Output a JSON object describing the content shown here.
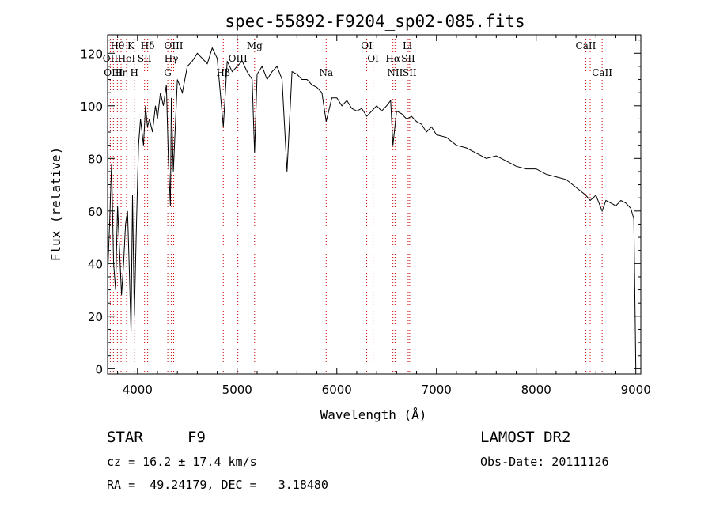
{
  "chart_data": {
    "type": "line",
    "title": "spec-55892-F9204_sp02-085.fits",
    "xlabel": "Wavelength (Å)",
    "ylabel": "Flux (relative)",
    "xlim": [
      3700,
      9050
    ],
    "ylim": [
      -2,
      127
    ],
    "xticks": [
      4000,
      5000,
      6000,
      7000,
      8000,
      9000
    ],
    "yticks": [
      0,
      20,
      40,
      60,
      80,
      100,
      120
    ],
    "grid": false,
    "series": [
      {
        "x": [
          3700,
          3720,
          3740,
          3760,
          3780,
          3800,
          3820,
          3840,
          3860,
          3880,
          3900,
          3920,
          3935,
          3950,
          3968,
          3990,
          4010,
          4030,
          4060,
          4080,
          4100,
          4120,
          4150,
          4180,
          4200,
          4230,
          4260,
          4290,
          4310,
          4330,
          4340,
          4360,
          4400,
          4450,
          4500,
          4550,
          4600,
          4650,
          4700,
          4750,
          4800,
          4861,
          4900,
          4950,
          5000,
          5050,
          5100,
          5150,
          5175,
          5200,
          5250,
          5300,
          5350,
          5400,
          5450,
          5500,
          5550,
          5600,
          5650,
          5700,
          5750,
          5800,
          5850,
          5893,
          5950,
          6000,
          6050,
          6100,
          6150,
          6200,
          6250,
          6300,
          6350,
          6400,
          6450,
          6500,
          6540,
          6563,
          6600,
          6650,
          6700,
          6750,
          6800,
          6850,
          6900,
          6950,
          7000,
          7100,
          7200,
          7300,
          7400,
          7500,
          7600,
          7700,
          7800,
          7900,
          8000,
          8100,
          8200,
          8300,
          8400,
          8498,
          8542,
          8600,
          8662,
          8700,
          8750,
          8800,
          8850,
          8900,
          8950,
          8980,
          8990,
          9000
        ],
        "y": [
          35,
          55,
          78,
          40,
          30,
          62,
          45,
          28,
          40,
          55,
          60,
          35,
          14,
          66,
          20,
          55,
          85,
          95,
          85,
          100,
          92,
          95,
          90,
          100,
          95,
          105,
          100,
          108,
          80,
          62,
          103,
          75,
          110,
          105,
          115,
          117,
          120,
          118,
          116,
          122,
          118,
          92,
          117,
          113,
          115,
          117,
          113,
          110,
          82,
          112,
          115,
          110,
          113,
          115,
          110,
          75,
          113,
          112,
          110,
          110,
          108,
          107,
          105,
          94,
          103,
          103,
          100,
          102,
          99,
          98,
          99,
          96,
          98,
          100,
          98,
          100,
          102,
          85,
          98,
          97,
          95,
          96,
          94,
          93,
          90,
          92,
          89,
          88,
          85,
          84,
          82,
          80,
          81,
          79,
          77,
          76,
          76,
          74,
          73,
          72,
          69,
          66,
          64,
          66,
          60,
          64,
          63,
          62,
          64,
          63,
          61,
          57,
          30,
          0
        ]
      }
    ],
    "line_labels": [
      {
        "label": "Hθ",
        "wavelength": 3798,
        "row": 1
      },
      {
        "label": "OII",
        "wavelength": 3727,
        "row": 2
      },
      {
        "label": "OIII",
        "wavelength": 3758,
        "row": 3
      },
      {
        "label": "K",
        "wavelength": 3934,
        "row": 1
      },
      {
        "label": "HeI",
        "wavelength": 3890,
        "row": 2
      },
      {
        "label": "Hη",
        "wavelength": 3835,
        "row": 3
      },
      {
        "label": "SII",
        "wavelength": 4071,
        "row": 2
      },
      {
        "label": "H",
        "wavelength": 3968,
        "row": 3
      },
      {
        "label": "Hδ",
        "wavelength": 4102,
        "row": 1
      },
      {
        "label": "OIII",
        "wavelength": 4363,
        "row": 1
      },
      {
        "label": "Hγ",
        "wavelength": 4340,
        "row": 2
      },
      {
        "label": "G",
        "wavelength": 4304,
        "row": 3
      },
      {
        "label": "Mg",
        "wavelength": 5175,
        "row": 1
      },
      {
        "label": "OIII",
        "wavelength": 5007,
        "row": 2
      },
      {
        "label": "Hβ",
        "wavelength": 4861,
        "row": 3
      },
      {
        "label": "Na",
        "wavelength": 5893,
        "row": 3
      },
      {
        "label": "OI",
        "wavelength": 6300,
        "row": 1
      },
      {
        "label": "OI",
        "wavelength": 6364,
        "row": 2
      },
      {
        "label": "Li",
        "wavelength": 6708,
        "row": 1
      },
      {
        "label": "Hα",
        "wavelength": 6563,
        "row": 2
      },
      {
        "label": "SII",
        "wavelength": 6716,
        "row": 2
      },
      {
        "label": "NII",
        "wavelength": 6584,
        "row": 3
      },
      {
        "label": "SII",
        "wavelength": 6731,
        "row": 3
      },
      {
        "label": "CaII",
        "wavelength": 8498,
        "row": 1
      },
      {
        "label": "CaII",
        "wavelength": 8662,
        "row": 3
      }
    ],
    "marker_lines": [
      3727,
      3758,
      3798,
      3835,
      3890,
      3934,
      3968,
      4071,
      4102,
      4304,
      4340,
      4363,
      4861,
      5007,
      5175,
      5893,
      6300,
      6364,
      6563,
      6584,
      6716,
      6731,
      8498,
      8542,
      8662
    ],
    "colors": {
      "spectrum": "#000000",
      "marker_lines": "#cc0000",
      "axes": "#000000"
    }
  },
  "info": {
    "object_class": "STAR",
    "subclass": "F9",
    "survey": "LAMOST DR2",
    "cz": "cz = 16.2 ± 17.4 km/s",
    "obs_date": "Obs-Date: 20111126",
    "coords": "RA =  49.24179, DEC =   3.18480"
  }
}
